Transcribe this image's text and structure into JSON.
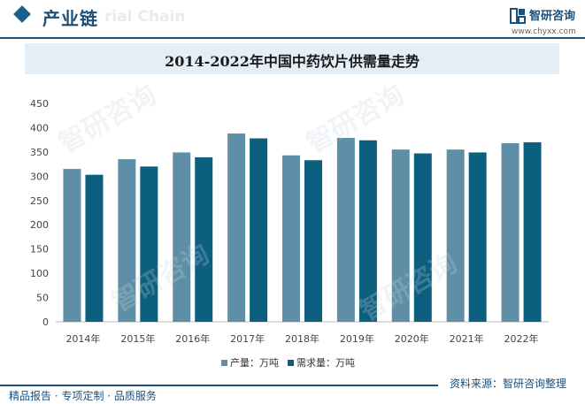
{
  "header": {
    "section_title": "产业链",
    "watermark_text": "rial Chain",
    "brand_name": "智研咨询",
    "brand_url": "www.chyxx.com"
  },
  "title": "2014-2022年中国中药饮片供需量走势",
  "colors": {
    "production": "#5f8fa6",
    "demand": "#0d5f7f",
    "brand": "#1d4f79",
    "title_band": "#e3eef7"
  },
  "chart_data": {
    "type": "bar",
    "categories": [
      "2014年",
      "2015年",
      "2016年",
      "2017年",
      "2018年",
      "2019年",
      "2020年",
      "2021年",
      "2022年"
    ],
    "series": [
      {
        "name": "产量：万吨",
        "values": [
          315,
          335,
          349,
          388,
          343,
          379,
          355,
          355,
          368
        ]
      },
      {
        "name": "需求量：万吨",
        "values": [
          303,
          320,
          339,
          378,
          333,
          374,
          347,
          349,
          370
        ]
      }
    ],
    "ylim": [
      0,
      450
    ],
    "yticks": [
      "0",
      "50",
      "100",
      "150",
      "200",
      "250",
      "300",
      "350",
      "400",
      "450"
    ],
    "grid": false,
    "legend": "bottom-center"
  },
  "footer": {
    "left": "精品报告 · 专项定制 · 品质服务",
    "right": "资料来源：智研咨询整理"
  },
  "bg_watermark": "智研咨询"
}
